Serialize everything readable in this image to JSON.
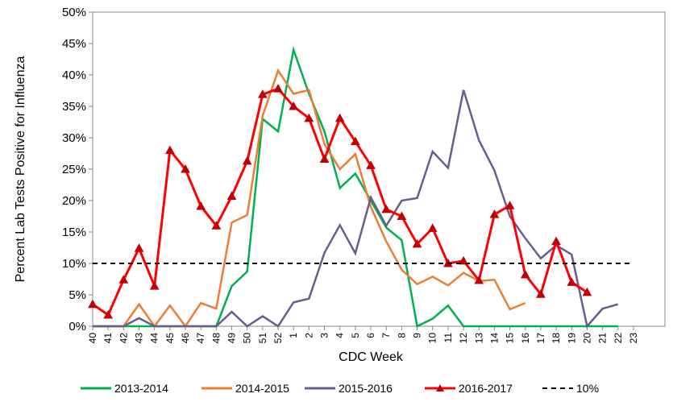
{
  "chart_data": {
    "type": "line",
    "x_label": "CDC Week",
    "y_label": "Percent Lab Tests Positive for Influenza",
    "categories": [
      "40",
      "41",
      "42",
      "43",
      "44",
      "45",
      "46",
      "47",
      "48",
      "49",
      "50",
      "51",
      "52",
      "1",
      "2",
      "3",
      "4",
      "5",
      "6",
      "7",
      "8",
      "9",
      "10",
      "11",
      "12",
      "13",
      "14",
      "15",
      "16",
      "17",
      "18",
      "19",
      "20",
      "21",
      "22",
      "23"
    ],
    "ylim": [
      0,
      50
    ],
    "yticks": [
      {
        "value": 0,
        "label": "0%"
      },
      {
        "value": 5,
        "label": "5%"
      },
      {
        "value": 10,
        "label": "10%"
      },
      {
        "value": 15,
        "label": "15%"
      },
      {
        "value": 20,
        "label": "20%"
      },
      {
        "value": 25,
        "label": "25%"
      },
      {
        "value": 30,
        "label": "30%"
      },
      {
        "value": 35,
        "label": "35%"
      },
      {
        "value": 40,
        "label": "40%"
      },
      {
        "value": 45,
        "label": "45%"
      },
      {
        "value": 50,
        "label": "50%"
      }
    ],
    "legend_position": "bottom",
    "series": [
      {
        "name": "2013-2014",
        "color": "#00b050",
        "marker": "none",
        "dash": "solid",
        "values": [
          0,
          0,
          0,
          0,
          0,
          0,
          0,
          0,
          0,
          6.4,
          8.7,
          33,
          31,
          44,
          37,
          31,
          22,
          24.3,
          20,
          15.7,
          13.7,
          0,
          1.2,
          3.3,
          0,
          0,
          0,
          0,
          0,
          0,
          0,
          0,
          0,
          0,
          0,
          null
        ]
      },
      {
        "name": "2014-2015",
        "color": "#ed7d31",
        "marker": "none",
        "dash": "solid",
        "values": [
          0,
          0,
          0,
          3.5,
          0,
          3.3,
          0,
          3.7,
          2.8,
          16.5,
          17.7,
          33.5,
          40.7,
          37,
          37.6,
          29,
          25,
          27.4,
          19,
          13.5,
          9,
          6.7,
          7.9,
          6.5,
          8.5,
          7.2,
          7.4,
          2.7,
          3.7,
          null,
          null,
          null,
          null,
          null,
          null,
          null
        ]
      },
      {
        "name": "2015-2016",
        "color": "#6b5b8e",
        "marker": "none",
        "dash": "solid",
        "values": [
          0,
          0,
          0,
          1.3,
          0,
          0,
          0,
          0,
          0,
          2.3,
          0,
          1.6,
          0,
          3.8,
          4.4,
          11.7,
          16.1,
          11.6,
          20.5,
          16,
          20,
          20.4,
          27.8,
          25.2,
          37.6,
          29.6,
          24.8,
          17.5,
          14,
          10.8,
          12.9,
          11.4,
          0,
          2.8,
          3.5,
          null
        ]
      },
      {
        "name": "2016-2017",
        "color": "#ff0000",
        "marker": "triangle",
        "dash": "solid",
        "values": [
          3.5,
          1.8,
          7.4,
          12.4,
          6.4,
          28,
          25,
          19.1,
          16,
          20.7,
          26.3,
          36.9,
          37.8,
          35,
          33.1,
          26.6,
          33.1,
          29.4,
          25.6,
          18.6,
          17.5,
          13.1,
          15.6,
          10,
          10.4,
          7.3,
          17.8,
          19.2,
          8.2,
          5.1,
          13.5,
          7,
          5.4,
          null,
          null,
          null
        ]
      },
      {
        "name": "10%",
        "color": "#000000",
        "marker": "none",
        "dash": "dashed",
        "values": [
          10,
          10,
          10,
          10,
          10,
          10,
          10,
          10,
          10,
          10,
          10,
          10,
          10,
          10,
          10,
          10,
          10,
          10,
          10,
          10,
          10,
          10,
          10,
          10,
          10,
          10,
          10,
          10,
          10,
          10,
          10,
          10,
          10,
          10,
          10,
          10
        ]
      }
    ]
  }
}
